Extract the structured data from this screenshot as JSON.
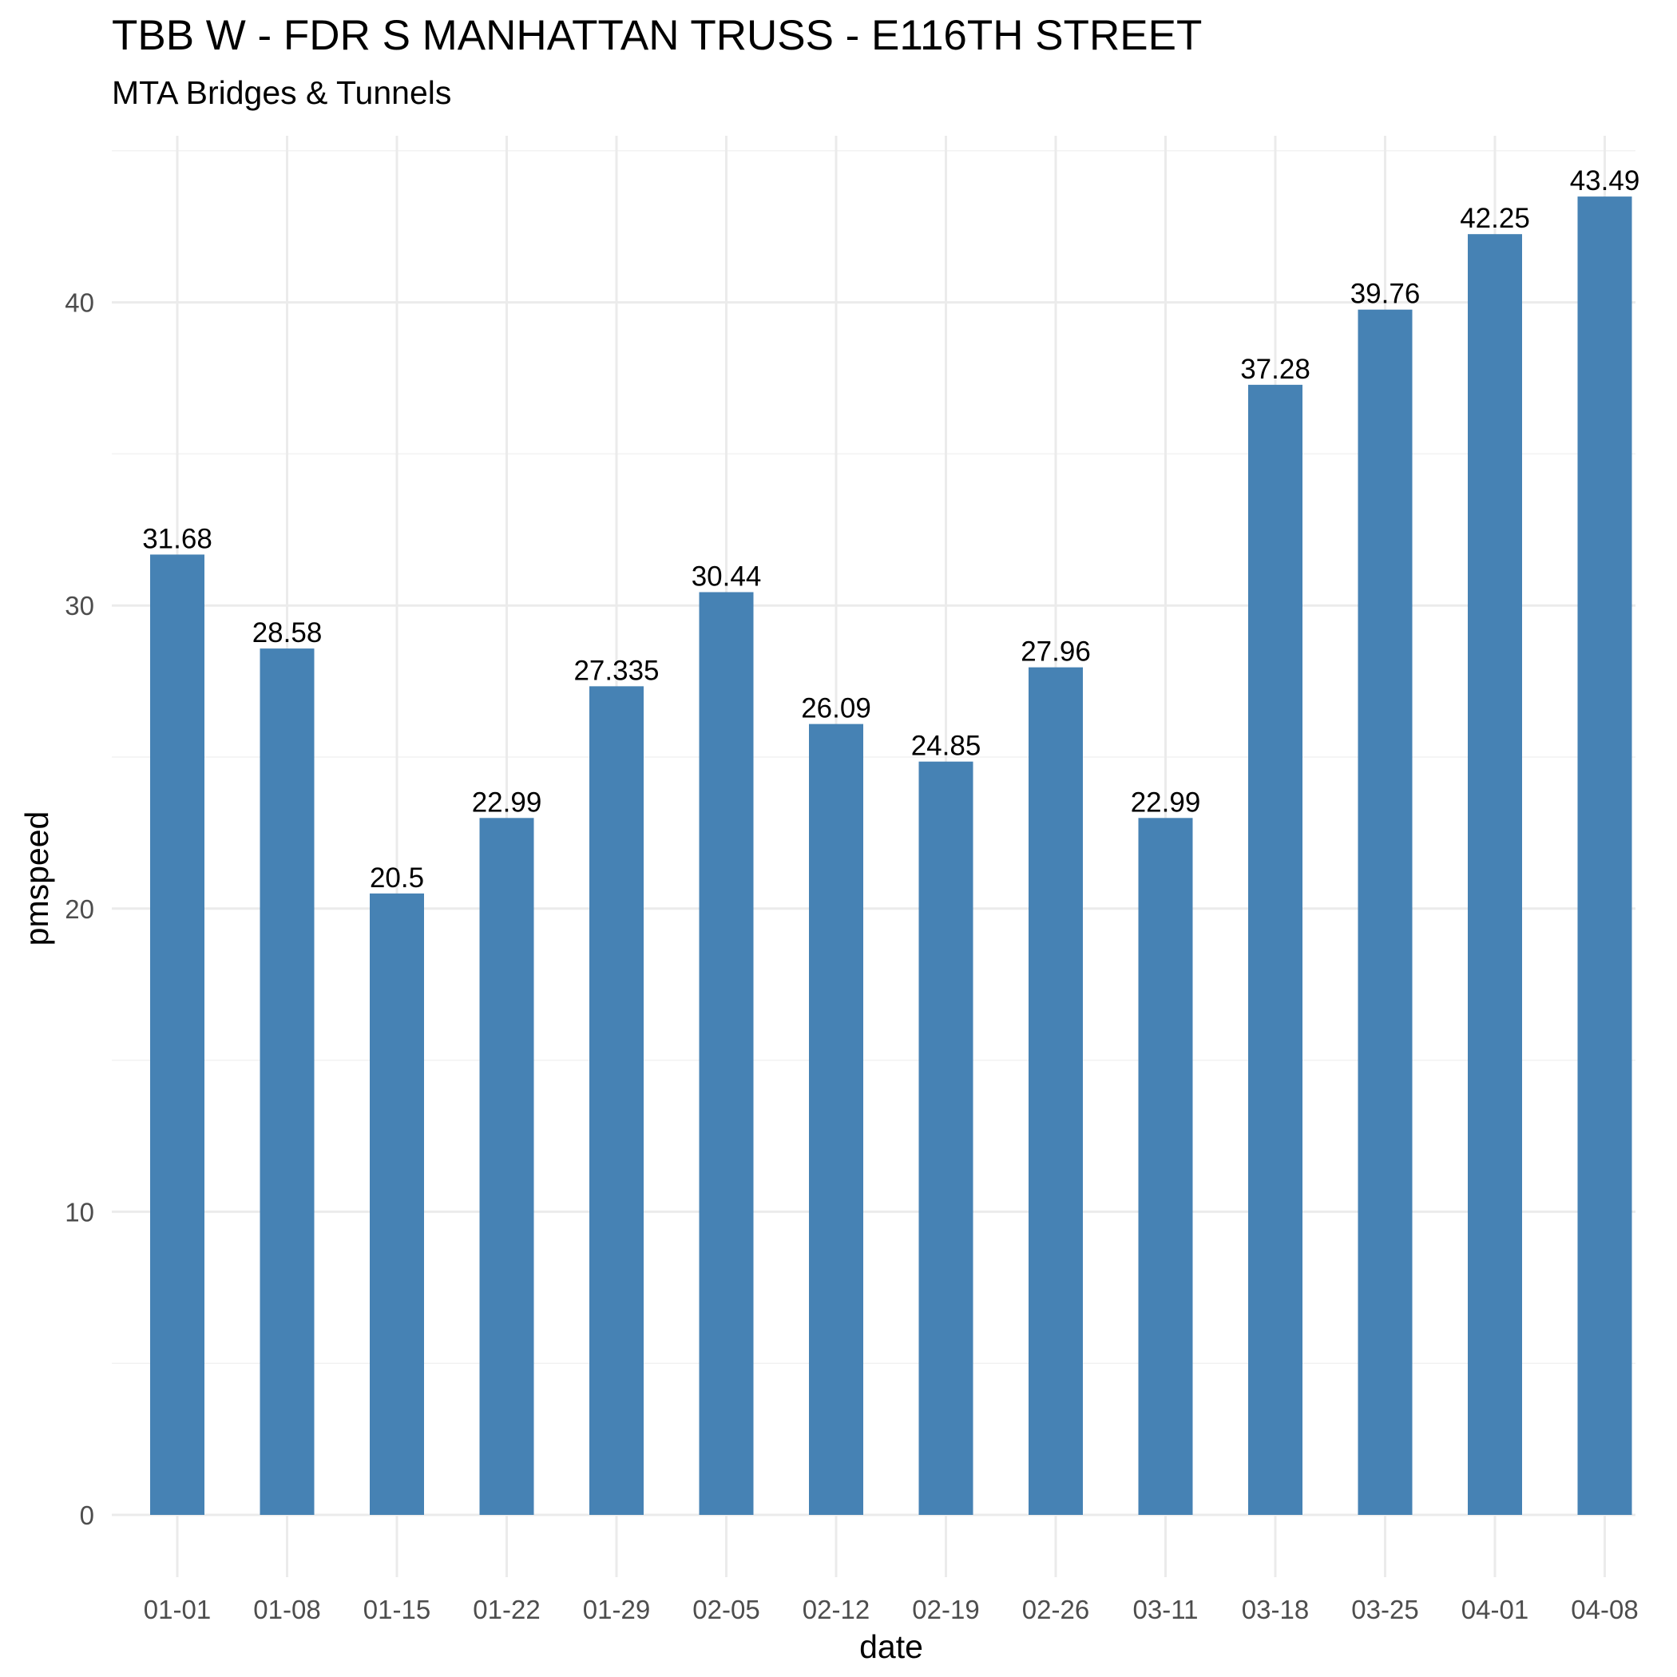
{
  "chart_data": {
    "type": "bar",
    "title": "TBB W - FDR S MANHATTAN TRUSS - E116TH STREET",
    "subtitle": "MTA Bridges & Tunnels",
    "xlabel": "date",
    "ylabel": "pmspeed",
    "categories": [
      "01-01",
      "01-08",
      "01-15",
      "01-22",
      "01-29",
      "02-05",
      "02-12",
      "02-19",
      "02-26",
      "03-11",
      "03-18",
      "03-25",
      "04-01",
      "04-08"
    ],
    "values": [
      31.68,
      28.58,
      20.5,
      22.99,
      27.335,
      30.44,
      26.09,
      24.85,
      27.96,
      22.99,
      37.28,
      39.76,
      42.25,
      43.49
    ],
    "data_labels": [
      "31.68",
      "28.58",
      "20.5",
      "22.99",
      "27.335",
      "30.44",
      "26.09",
      "24.85",
      "27.96",
      "22.99",
      "37.28",
      "39.76",
      "42.25",
      "43.49"
    ],
    "ylim": [
      0,
      45.7
    ],
    "yticks": [
      0,
      10,
      20,
      30,
      40
    ],
    "grid": true,
    "bar_color": "#4682B4"
  }
}
